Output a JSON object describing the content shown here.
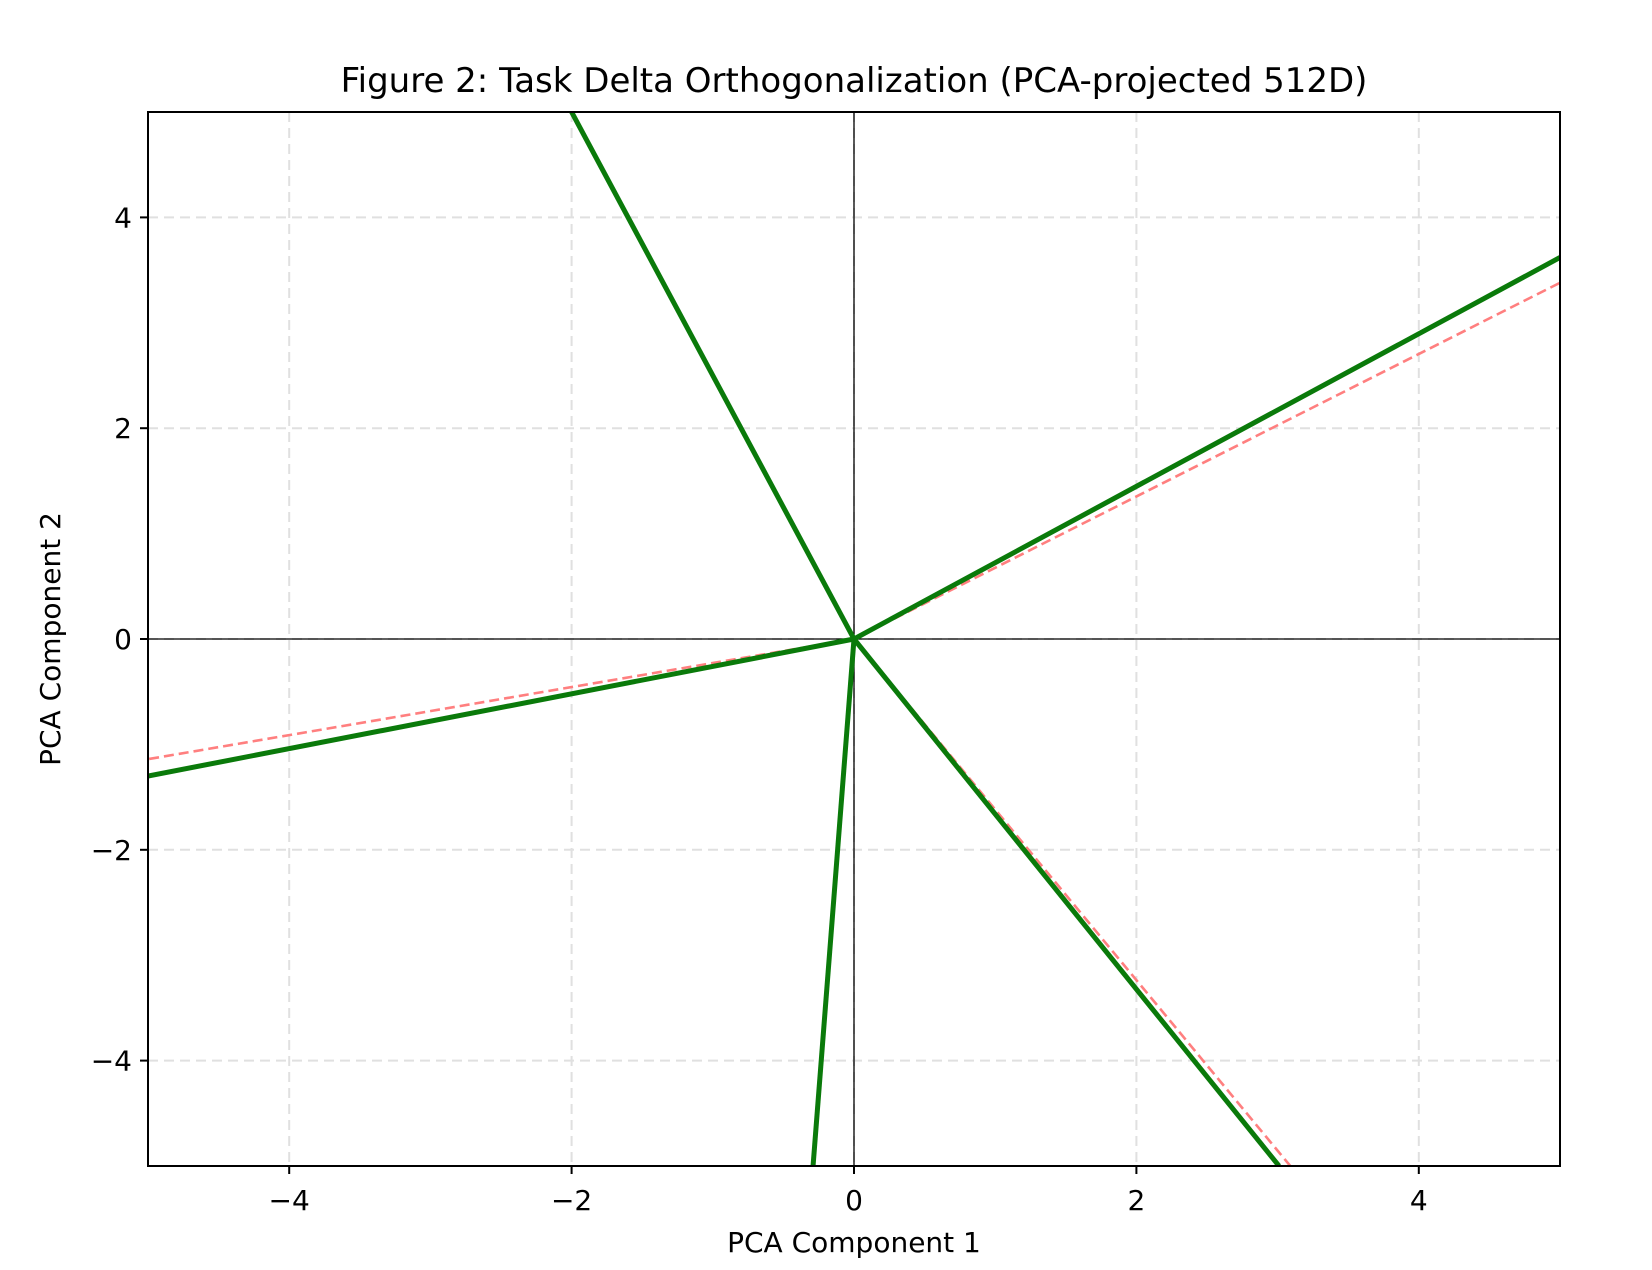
{
  "chart_data": {
    "type": "line",
    "title": "Figure 2: Task Delta Orthogonalization (PCA-projected 512D)",
    "xlabel": "PCA Component 1",
    "ylabel": "PCA Component 2",
    "xlim": [
      -5,
      5
    ],
    "ylim": [
      -5,
      5
    ],
    "xticks": [
      {
        "value": -4,
        "label": "−4"
      },
      {
        "value": -2,
        "label": "−2"
      },
      {
        "value": 0,
        "label": "0"
      },
      {
        "value": 2,
        "label": "2"
      },
      {
        "value": 4,
        "label": "4"
      }
    ],
    "yticks": [
      {
        "value": -4,
        "label": "−4"
      },
      {
        "value": -2,
        "label": "−2"
      },
      {
        "value": 0,
        "label": "0"
      },
      {
        "value": 2,
        "label": "2"
      },
      {
        "value": 4,
        "label": "4"
      }
    ],
    "grid": true,
    "grid_style": "dashed",
    "reference_lines": [
      {
        "axis": "x",
        "value": 0
      },
      {
        "axis": "y",
        "value": 0
      }
    ],
    "colors": {
      "original": "#ff7f7f",
      "orthogonalized": "#0a7a0a",
      "grid": "#e0e0e0",
      "axes": "#000000"
    },
    "series": [
      {
        "group": "original",
        "style": "dashed",
        "segments": [
          {
            "x": [
              0,
              5
            ],
            "y": [
              0,
              3.38
            ]
          },
          {
            "x": [
              0,
              -5
            ],
            "y": [
              0,
              -1.14
            ]
          },
          {
            "x": [
              0,
              3.09
            ],
            "y": [
              0,
              -5
            ]
          },
          {
            "x": [
              0,
              -0.29
            ],
            "y": [
              0,
              -5
            ]
          },
          {
            "x": [
              0,
              -2.0
            ],
            "y": [
              0,
              5
            ]
          }
        ]
      },
      {
        "group": "orthogonalized",
        "style": "solid",
        "segments": [
          {
            "x": [
              0,
              5
            ],
            "y": [
              0,
              3.62
            ]
          },
          {
            "x": [
              0,
              -5
            ],
            "y": [
              0,
              -1.3
            ]
          },
          {
            "x": [
              0,
              3.01
            ],
            "y": [
              0,
              -5
            ]
          },
          {
            "x": [
              0,
              -0.29
            ],
            "y": [
              0,
              -5
            ]
          },
          {
            "x": [
              0,
              -2.0
            ],
            "y": [
              0,
              5
            ]
          }
        ]
      }
    ]
  }
}
